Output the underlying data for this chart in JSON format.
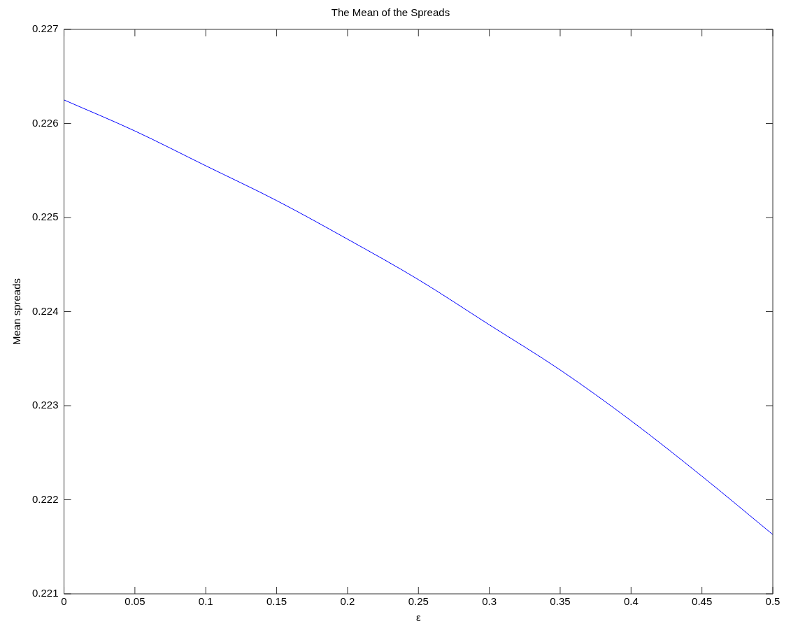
{
  "chart_data": {
    "type": "line",
    "title": "The Mean of the Spreads",
    "xlabel": "ε",
    "ylabel": "Mean spreads",
    "x": [
      0,
      0.05,
      0.1,
      0.15,
      0.2,
      0.25,
      0.3,
      0.35,
      0.4,
      0.45,
      0.5
    ],
    "series": [
      {
        "color": "#0000ff",
        "values": [
          0.22625,
          0.22592,
          0.22555,
          0.22518,
          0.22477,
          0.22434,
          0.22386,
          0.22338,
          0.22284,
          0.22225,
          0.22163
        ]
      }
    ],
    "xlim": [
      0,
      0.5
    ],
    "xticks": [
      0,
      0.05,
      0.1,
      0.15,
      0.2,
      0.25,
      0.3,
      0.35,
      0.4,
      0.45,
      0.5
    ],
    "ylim": [
      0.221,
      0.227
    ],
    "yticks": [
      0.221,
      0.222,
      0.223,
      0.224,
      0.225,
      0.226,
      0.227
    ],
    "grid": false,
    "legend": false,
    "marker": "none",
    "line_style": "solid"
  }
}
